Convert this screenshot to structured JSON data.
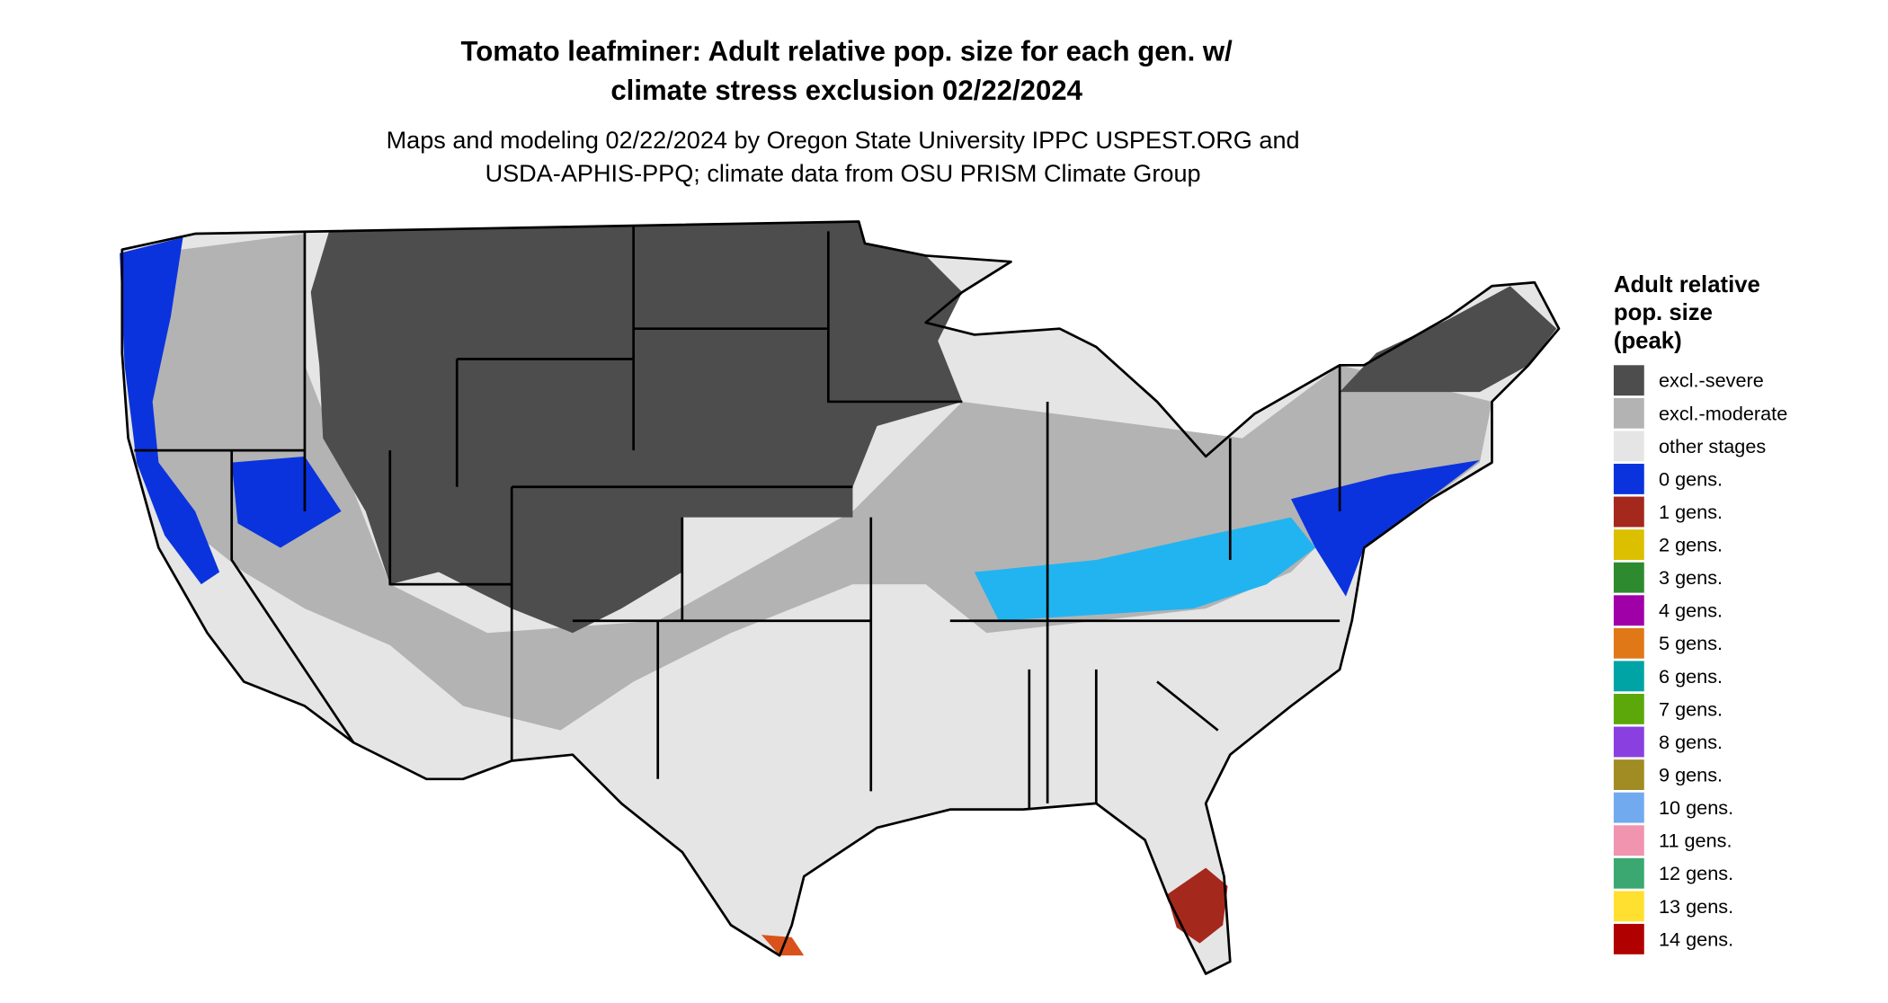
{
  "title": [
    "Tomato leafminer: Adult relative pop. size for each gen. w/",
    "climate stress exclusion 02/22/2024"
  ],
  "subtitle": [
    "Maps and modeling 02/22/2024 by Oregon State University IPPC USPEST.ORG and",
    "USDA-APHIS-PPQ; climate data from OSU PRISM Climate Group"
  ],
  "legend": {
    "title": [
      "Adult relative",
      "pop. size",
      "(peak)"
    ],
    "items": [
      {
        "name": "excl.-severe",
        "color": "#4d4d4d"
      },
      {
        "name": "excl.-moderate",
        "color": "#b3b3b3"
      },
      {
        "name": "other stages",
        "color": "#e5e5e5"
      },
      {
        "name": "0 gens.",
        "color": "#0a33dd"
      },
      {
        "name": "1 gens.",
        "color": "#a5281c"
      },
      {
        "name": "2 gens.",
        "color": "#dcc000"
      },
      {
        "name": "3 gens.",
        "color": "#2e8a2e"
      },
      {
        "name": "4 gens.",
        "color": "#a000a8"
      },
      {
        "name": "5 gens.",
        "color": "#e07818"
      },
      {
        "name": "6 gens.",
        "color": "#00a4a4"
      },
      {
        "name": "7 gens.",
        "color": "#5ca80a"
      },
      {
        "name": "8 gens.",
        "color": "#8a40e0"
      },
      {
        "name": "9 gens.",
        "color": "#a08c22"
      },
      {
        "name": "10 gens.",
        "color": "#72aaf0"
      },
      {
        "name": "11 gens.",
        "color": "#f094b0"
      },
      {
        "name": "12 gens.",
        "color": "#3aa870"
      },
      {
        "name": "13 gens.",
        "color": "#ffe030"
      },
      {
        "name": "14 gens.",
        "color": "#b00000"
      }
    ]
  }
}
